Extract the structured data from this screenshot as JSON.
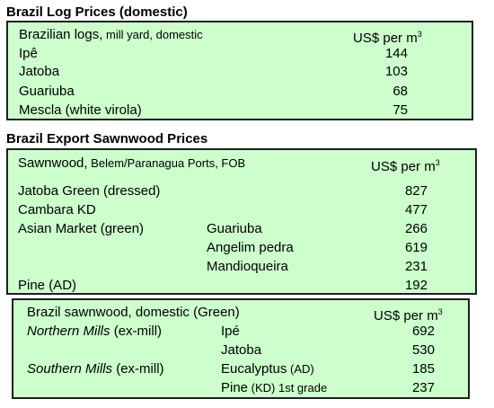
{
  "section1": {
    "title": "Brazil Log Prices (domestic)",
    "header_label": "Brazilian logs,",
    "header_label_small": " mill yard, domestic",
    "unit": "US$ per m",
    "unit_sup": "3",
    "rows": [
      {
        "name": "Ipê",
        "value": "144"
      },
      {
        "name": "Jatoba",
        "value": "103"
      },
      {
        "name": "Guariuba",
        "value": "68"
      },
      {
        "name": "Mescla (white virola)",
        "value": "75"
      }
    ]
  },
  "section2": {
    "title": "Brazil Export Sawnwood Prices",
    "header_label": "Sawnwood,",
    "header_label_small": " Belem/Paranagua Ports, FOB",
    "unit": "US$ per m",
    "unit_sup": "3",
    "rows": [
      {
        "name": "Jatoba Green (dressed)",
        "sub": "",
        "value": "827"
      },
      {
        "name": "Cambara KD",
        "sub": "",
        "value": "477"
      },
      {
        "name": "Asian Market (green)",
        "sub": "Guariuba",
        "value": "266"
      },
      {
        "name": "",
        "sub": "Angelim pedra",
        "value": "619"
      },
      {
        "name": "",
        "sub": "Mandioqueira",
        "value": "231"
      },
      {
        "name": "Pine (AD)",
        "sub": "",
        "value": "192"
      }
    ]
  },
  "section3": {
    "header_label": "Brazil sawnwood, domestic (Green)",
    "unit": "US$ per m",
    "unit_sup": "3",
    "rows": [
      {
        "region": "Northern Mills",
        "region_note": " (ex-mill)",
        "species": "Ipé",
        "species_note": "",
        "value": "692"
      },
      {
        "region": "",
        "region_note": "",
        "species": "Jatoba",
        "species_note": "",
        "value": "530"
      },
      {
        "region": "Southern Mills",
        "region_note": " (ex-mill)",
        "species": "Eucalyptus",
        "species_note": " (AD)",
        "value": "185"
      },
      {
        "region": "",
        "region_note": "",
        "species": "Pine",
        "species_note": " (KD) 1st grade",
        "value": "237"
      }
    ]
  }
}
